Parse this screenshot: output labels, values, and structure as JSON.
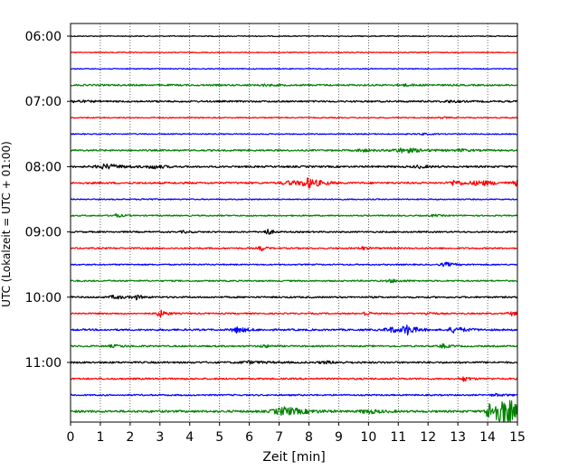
{
  "chart_data": {
    "type": "line",
    "title": "",
    "xlabel": "Zeit  [min]",
    "ylabel": "UTC (Lokalzeit = UTC + 01:00)",
    "xlim": [
      0,
      15
    ],
    "x_ticks": [
      0,
      1,
      2,
      3,
      4,
      5,
      6,
      7,
      8,
      9,
      10,
      11,
      12,
      13,
      14,
      15
    ],
    "y_tick_labels": [
      "06:00",
      "07:00",
      "08:00",
      "09:00",
      "10:00",
      "11:00"
    ],
    "grid": "vertical dotted",
    "trace_interval_min": 15,
    "colors": [
      "#000000",
      "#ff0000",
      "#0000ff",
      "#008000"
    ],
    "traces": [
      {
        "start": "06:00",
        "color": "#000000",
        "level": 0.5,
        "events": []
      },
      {
        "start": "06:15",
        "color": "#ff0000",
        "level": 0.5,
        "events": []
      },
      {
        "start": "06:30",
        "color": "#0000ff",
        "level": 0.5,
        "events": []
      },
      {
        "start": "06:45",
        "color": "#008000",
        "level": 0.9,
        "events": [
          {
            "t": 6.5,
            "amp": 0.8,
            "dur": 0.3
          },
          {
            "t": 11.2,
            "amp": 0.8,
            "dur": 0.4
          }
        ]
      },
      {
        "start": "07:00",
        "color": "#000000",
        "level": 0.9,
        "events": [
          {
            "t": 0.2,
            "amp": 1.2,
            "dur": 0.3
          },
          {
            "t": 12.7,
            "amp": 1.0,
            "dur": 0.3
          }
        ]
      },
      {
        "start": "07:15",
        "color": "#ff0000",
        "level": 0.6,
        "events": [
          {
            "t": 12.5,
            "amp": 0.7,
            "dur": 0.2
          }
        ]
      },
      {
        "start": "07:30",
        "color": "#0000ff",
        "level": 0.6,
        "events": [
          {
            "t": 11.8,
            "amp": 0.8,
            "dur": 0.2
          }
        ]
      },
      {
        "start": "07:45",
        "color": "#008000",
        "level": 0.9,
        "events": [
          {
            "t": 9.8,
            "amp": 1.5,
            "dur": 0.3
          },
          {
            "t": 11.2,
            "amp": 2.5,
            "dur": 0.6
          },
          {
            "t": 13.1,
            "amp": 1.2,
            "dur": 0.3
          }
        ]
      },
      {
        "start": "08:00",
        "color": "#000000",
        "level": 1.0,
        "events": [
          {
            "t": 1.2,
            "amp": 2.5,
            "dur": 0.5
          },
          {
            "t": 2.8,
            "amp": 2.0,
            "dur": 0.3
          },
          {
            "t": 11.7,
            "amp": 1.2,
            "dur": 0.3
          }
        ]
      },
      {
        "start": "08:15",
        "color": "#ff0000",
        "level": 1.0,
        "events": [
          {
            "t": 7.4,
            "amp": 2.0,
            "dur": 0.5
          },
          {
            "t": 8.0,
            "amp": 5.0,
            "dur": 0.35
          },
          {
            "t": 12.9,
            "amp": 3.0,
            "dur": 0.3
          },
          {
            "t": 13.8,
            "amp": 2.5,
            "dur": 0.5
          },
          {
            "t": 15.0,
            "amp": 3.0,
            "dur": 0.2
          }
        ]
      },
      {
        "start": "08:30",
        "color": "#0000ff",
        "level": 0.6,
        "events": [
          {
            "t": 2.5,
            "amp": 0.8,
            "dur": 0.2
          }
        ]
      },
      {
        "start": "08:45",
        "color": "#008000",
        "level": 0.7,
        "events": [
          {
            "t": 1.5,
            "amp": 2.0,
            "dur": 0.2
          },
          {
            "t": 12.2,
            "amp": 1.0,
            "dur": 0.2
          }
        ]
      },
      {
        "start": "09:00",
        "color": "#000000",
        "level": 0.8,
        "events": [
          {
            "t": 6.6,
            "amp": 3.5,
            "dur": 0.15
          },
          {
            "t": 3.8,
            "amp": 1.0,
            "dur": 0.2
          }
        ]
      },
      {
        "start": "09:15",
        "color": "#ff0000",
        "level": 0.8,
        "events": [
          {
            "t": 6.4,
            "amp": 3.0,
            "dur": 0.12
          },
          {
            "t": 9.8,
            "amp": 1.5,
            "dur": 0.2
          }
        ]
      },
      {
        "start": "09:30",
        "color": "#0000ff",
        "level": 0.7,
        "events": [
          {
            "t": 12.6,
            "amp": 2.0,
            "dur": 0.3
          }
        ]
      },
      {
        "start": "09:45",
        "color": "#008000",
        "level": 0.8,
        "events": [
          {
            "t": 10.8,
            "amp": 1.5,
            "dur": 0.3
          }
        ]
      },
      {
        "start": "10:00",
        "color": "#000000",
        "level": 0.9,
        "events": [
          {
            "t": 1.5,
            "amp": 1.8,
            "dur": 0.3
          },
          {
            "t": 2.2,
            "amp": 2.2,
            "dur": 0.2
          }
        ]
      },
      {
        "start": "10:15",
        "color": "#ff0000",
        "level": 0.8,
        "events": [
          {
            "t": 3.0,
            "amp": 4.0,
            "dur": 0.2
          },
          {
            "t": 9.9,
            "amp": 3.0,
            "dur": 0.12
          },
          {
            "t": 12.0,
            "amp": 2.0,
            "dur": 0.15
          },
          {
            "t": 14.8,
            "amp": 2.0,
            "dur": 0.2
          }
        ]
      },
      {
        "start": "10:30",
        "color": "#0000ff",
        "level": 1.0,
        "events": [
          {
            "t": 5.6,
            "amp": 3.0,
            "dur": 0.3
          },
          {
            "t": 10.8,
            "amp": 2.5,
            "dur": 0.4
          },
          {
            "t": 11.3,
            "amp": 5.0,
            "dur": 0.25
          },
          {
            "t": 12.9,
            "amp": 3.0,
            "dur": 0.35
          }
        ]
      },
      {
        "start": "10:45",
        "color": "#008000",
        "level": 0.9,
        "events": [
          {
            "t": 1.5,
            "amp": 1.0,
            "dur": 0.4
          },
          {
            "t": 6.5,
            "amp": 1.5,
            "dur": 0.2
          },
          {
            "t": 12.5,
            "amp": 2.0,
            "dur": 0.2
          }
        ]
      },
      {
        "start": "11:00",
        "color": "#000000",
        "level": 1.0,
        "events": [
          {
            "t": 6.0,
            "amp": 1.2,
            "dur": 0.5
          },
          {
            "t": 8.6,
            "amp": 1.0,
            "dur": 0.4
          }
        ]
      },
      {
        "start": "11:15",
        "color": "#ff0000",
        "level": 0.9,
        "events": [
          {
            "t": 13.2,
            "amp": 2.5,
            "dur": 0.2
          }
        ]
      },
      {
        "start": "11:30",
        "color": "#0000ff",
        "level": 0.8,
        "events": [
          {
            "t": 14.3,
            "amp": 1.2,
            "dur": 0.3
          }
        ]
      },
      {
        "start": "11:45",
        "color": "#008000",
        "level": 1.2,
        "events": [
          {
            "t": 7.2,
            "amp": 4.5,
            "dur": 0.6
          },
          {
            "t": 10.0,
            "amp": 2.0,
            "dur": 0.4
          },
          {
            "t": 14.1,
            "amp": 11.0,
            "dur": 0.25
          },
          {
            "t": 14.5,
            "amp": 17.0,
            "dur": 0.3
          },
          {
            "t": 14.8,
            "amp": 4.5,
            "dur": 0.3
          }
        ]
      }
    ]
  }
}
